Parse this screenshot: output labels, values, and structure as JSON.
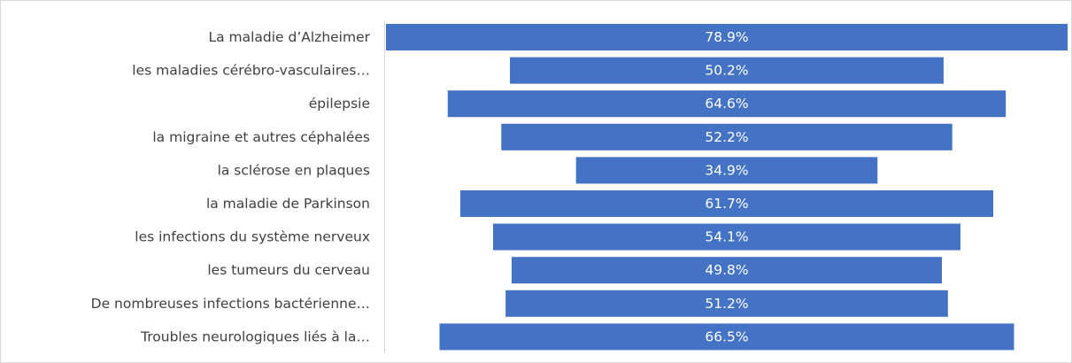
{
  "chart_data": {
    "type": "bar",
    "orientation": "horizontal",
    "alignment": "centered",
    "categories": [
      "La maladie d’Alzheimer",
      "les maladies cérébro-vasculaires…",
      "épilepsie",
      "la migraine et autres céphalées",
      "la sclérose en plaques",
      "la maladie de Parkinson",
      "les infections du système nerveux",
      "les tumeurs du cerveau",
      "De nombreuses infections bactérienne…",
      "Troubles neurologiques liés à la…"
    ],
    "values": [
      78.9,
      50.2,
      64.6,
      52.2,
      34.9,
      61.7,
      54.1,
      49.8,
      51.2,
      66.5
    ],
    "value_labels": [
      "78.9%",
      "50.2%",
      "64.6%",
      "52.2%",
      "34.9%",
      "61.7%",
      "54.1%",
      "49.8%",
      "51.2%",
      "66.5%"
    ],
    "unit": "%",
    "title": "",
    "xlabel": "",
    "ylabel": "",
    "xlim": [
      0,
      78.9
    ],
    "grid": false,
    "legend": "none",
    "colors": {
      "bar": "#4472C4",
      "bar_label": "#FFFFFF",
      "category_label": "#404040",
      "axis_line": "#D9D9D9",
      "border": "#D9D9D9",
      "background": "#FFFFFF"
    }
  }
}
